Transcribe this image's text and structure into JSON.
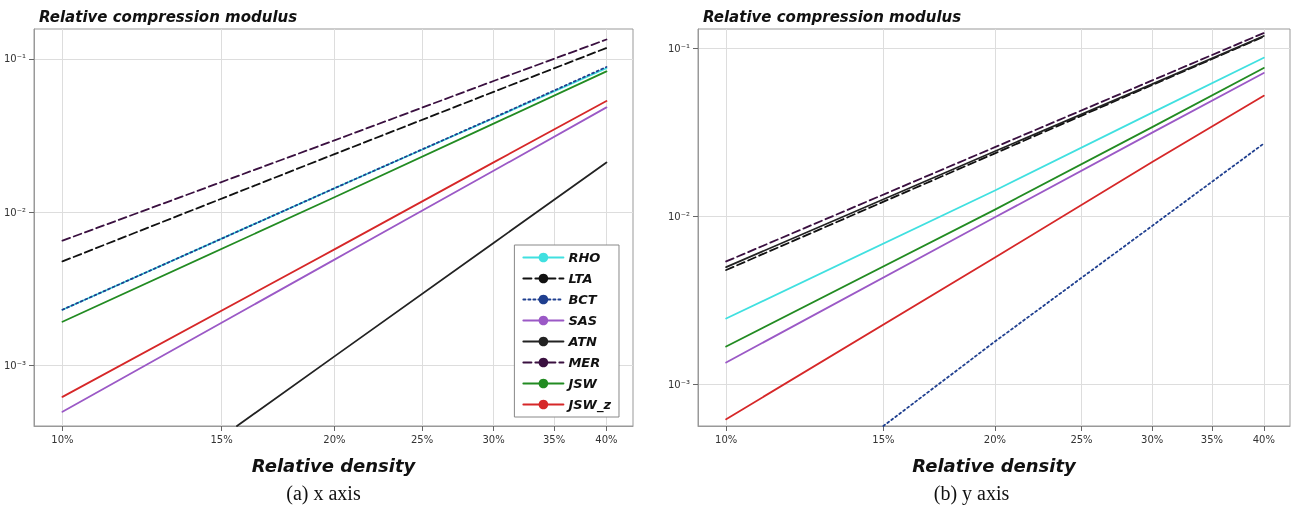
{
  "chart_data": [
    {
      "type": "line",
      "title": "Relative compression modulus",
      "xlabel": "Relative density",
      "annotations": [
        "(a) x axis"
      ],
      "log": "xy",
      "grid": true,
      "legend": "bottom right",
      "x": [
        0.1,
        0.2,
        0.3,
        0.4
      ],
      "xlim": [
        0.093,
        0.428
      ],
      "ylim": [
        0.0004,
        0.157
      ],
      "xticks": [
        {
          "value": 0.1,
          "label": "10%"
        },
        {
          "value": 0.15,
          "label": "15%"
        },
        {
          "value": 0.2,
          "label": "20%"
        },
        {
          "value": 0.25,
          "label": "25%"
        },
        {
          "value": 0.3,
          "label": "30%"
        },
        {
          "value": 0.35,
          "label": "35%"
        },
        {
          "value": 0.4,
          "label": "40%"
        }
      ],
      "yticks": [
        {
          "value": 0.001,
          "label": "10⁻³"
        },
        {
          "value": 0.01,
          "label": "10⁻²"
        },
        {
          "value": 0.1,
          "label": "10⁻¹"
        }
      ],
      "series": [
        {
          "name": "RHO",
          "color": "#40e0e0",
          "line_style": "solid",
          "values": [
            0.0023,
            0.0143,
            0.041,
            0.087
          ]
        },
        {
          "name": "LTA",
          "color": "#111111",
          "line_style": "dashed",
          "values": [
            0.00476,
            0.0239,
            0.061,
            0.118
          ]
        },
        {
          "name": "BCT",
          "color": "#1f3f8f",
          "line_style": "dotted",
          "values": [
            0.0023,
            0.0143,
            0.0413,
            0.0887
          ]
        },
        {
          "name": "SAS",
          "color": "#9b59c6",
          "line_style": "solid",
          "values": [
            0.000495,
            0.00489,
            0.0186,
            0.0483
          ]
        },
        {
          "name": "ATN",
          "color": "#222222",
          "line_style": "solid",
          "x": [
            0.156,
            0.2,
            0.3,
            0.4
          ],
          "values": [
            0.0004,
            0.00114,
            0.00628,
            0.0211
          ]
        },
        {
          "name": "MER",
          "color": "#3a1040",
          "line_style": "dashed",
          "values": [
            0.0065,
            0.0294,
            0.0718,
            0.134
          ]
        },
        {
          "name": "JSW",
          "color": "#228b22",
          "line_style": "solid",
          "values": [
            0.00192,
            0.0125,
            0.0378,
            0.083
          ]
        },
        {
          "name": "JSW_z",
          "color": "#d62728",
          "line_style": "solid",
          "values": [
            0.00062,
            0.0057,
            0.0211,
            0.0531
          ]
        }
      ]
    },
    {
      "type": "line",
      "title": "Relative compression modulus",
      "xlabel": "Relative density",
      "annotations": [
        "(b) y axis"
      ],
      "log": "xy",
      "grid": true,
      "legend": false,
      "x": [
        0.1,
        0.2,
        0.3,
        0.4
      ],
      "xlim": [
        0.093,
        0.428
      ],
      "ylim": [
        0.000565,
        0.131
      ],
      "xticks": [
        {
          "value": 0.1,
          "label": "10%"
        },
        {
          "value": 0.15,
          "label": "15%"
        },
        {
          "value": 0.2,
          "label": "20%"
        },
        {
          "value": 0.25,
          "label": "25%"
        },
        {
          "value": 0.3,
          "label": "30%"
        },
        {
          "value": 0.35,
          "label": "35%"
        },
        {
          "value": 0.4,
          "label": "40%"
        }
      ],
      "yticks": [
        {
          "value": 0.001,
          "label": "10⁻³"
        },
        {
          "value": 0.01,
          "label": "10⁻²"
        },
        {
          "value": 0.1,
          "label": "10⁻¹"
        }
      ],
      "series": [
        {
          "color": "#40e0e0",
          "line_style": "solid",
          "values": [
            0.00247,
            0.0143,
            0.0416,
            0.0883
          ]
        },
        {
          "color": "#111111",
          "line_style": "dashed",
          "values": [
            0.0048,
            0.0238,
            0.0608,
            0.118
          ]
        },
        {
          "color": "#1f3f8f",
          "line_style": "dotted",
          "x": [
            0.15,
            0.2,
            0.3,
            0.4
          ],
          "values": [
            0.000565,
            0.0018,
            0.0088,
            0.0272
          ]
        },
        {
          "color": "#9b59c6",
          "line_style": "solid",
          "values": [
            0.00135,
            0.0099,
            0.0316,
            0.0716
          ]
        },
        {
          "color": "#222222",
          "line_style": "solid",
          "values": [
            0.005,
            0.0245,
            0.0615,
            0.119
          ]
        },
        {
          "color": "#3a1040",
          "line_style": "dashed",
          "values": [
            0.0054,
            0.0259,
            0.0647,
            0.124
          ]
        },
        {
          "color": "#228b22",
          "line_style": "solid",
          "values": [
            0.00168,
            0.011,
            0.0341,
            0.0767
          ]
        },
        {
          "color": "#d62728",
          "line_style": "solid",
          "values": [
            0.00062,
            0.0057,
            0.0211,
            0.0525
          ]
        }
      ]
    }
  ]
}
